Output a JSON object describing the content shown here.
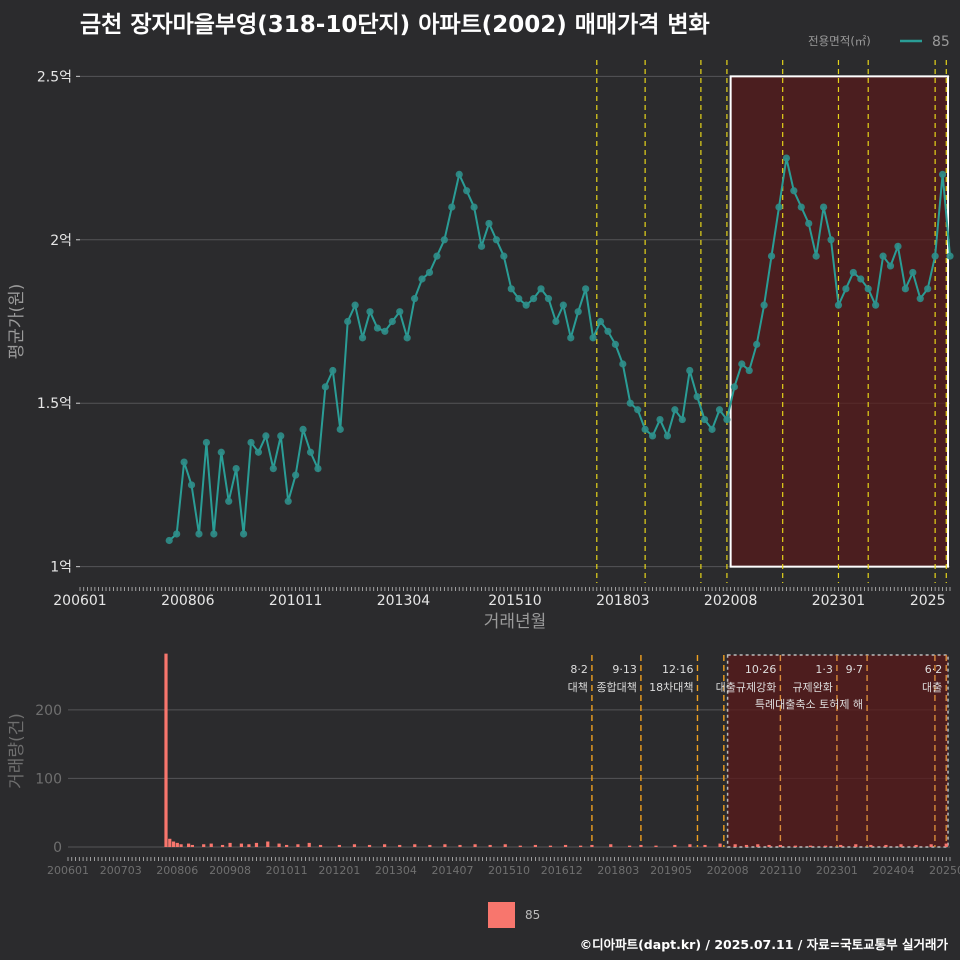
{
  "title": "금천 장자마을부영(318-10단지) 아파트(2002) 매매가격 변화",
  "footer": "©디아파트(dapt.kr) / 2025.07.11 / 자료=국토교통부 실거래가",
  "colors": {
    "background": "#2b2b2d",
    "price_line": "#2a9d96",
    "price_point": "#2f8f8b",
    "volume_bar": "#f8766d",
    "policy_line": "#e6d51a",
    "policy_line_bottom": "#f0a020",
    "highlight_fill": "#5a1a1a"
  },
  "legend_top": {
    "title": "전용면적(㎡)",
    "series": "85"
  },
  "legend_bottom": {
    "label": "85"
  },
  "chart_data": [
    {
      "type": "line",
      "xlabel": "거래년월",
      "ylabel": "평균가(원)",
      "y_unit": "억원",
      "ylim": [
        0.95,
        2.55
      ],
      "xlim": [
        "2006-01",
        "2025-07"
      ],
      "x_tick_labels": [
        "200601",
        "200806",
        "201011",
        "201304",
        "201510",
        "201803",
        "202008",
        "202301",
        "2025"
      ],
      "y_tick_labels": [
        "1억",
        "1.5억",
        "2억",
        "2.5억"
      ],
      "y_ticks": [
        1,
        1.5,
        2,
        2.5
      ],
      "grid": true,
      "legend_position": "top-right",
      "policy_dates": [
        "2017-08",
        "2018-09",
        "2019-12",
        "2020-07",
        "2021-10",
        "2023-01",
        "2023-09",
        "2025-03",
        "2025-06"
      ],
      "highlight_range": {
        "x": [
          "2020-08",
          "2025-07"
        ],
        "y": [
          1.0,
          2.5
        ]
      },
      "series": [
        {
          "name": "85",
          "x": [
            "2008-01",
            "2008-03",
            "2008-05",
            "2008-07",
            "2008-09",
            "2008-11",
            "2009-01",
            "2009-03",
            "2009-05",
            "2009-07",
            "2009-09",
            "2009-11",
            "2010-01",
            "2010-03",
            "2010-05",
            "2010-07",
            "2010-09",
            "2010-11",
            "2011-01",
            "2011-03",
            "2011-05",
            "2011-07",
            "2011-09",
            "2011-11",
            "2012-01",
            "2012-03",
            "2012-05",
            "2012-07",
            "2012-09",
            "2012-11",
            "2013-01",
            "2013-03",
            "2013-05",
            "2013-07",
            "2013-09",
            "2013-11",
            "2014-01",
            "2014-03",
            "2014-05",
            "2014-07",
            "2014-09",
            "2014-11",
            "2015-01",
            "2015-03",
            "2015-05",
            "2015-07",
            "2015-09",
            "2015-11",
            "2016-01",
            "2016-03",
            "2016-05",
            "2016-07",
            "2016-09",
            "2016-11",
            "2017-01",
            "2017-03",
            "2017-05",
            "2017-07",
            "2017-09",
            "2017-11",
            "2018-01",
            "2018-03",
            "2018-05",
            "2018-07",
            "2018-09",
            "2018-11",
            "2019-01",
            "2019-03",
            "2019-05",
            "2019-07",
            "2019-09",
            "2019-11",
            "2020-01",
            "2020-03",
            "2020-05",
            "2020-07",
            "2020-09",
            "2020-11",
            "2021-01",
            "2021-03",
            "2021-05",
            "2021-07",
            "2021-09",
            "2021-11",
            "2022-01",
            "2022-03",
            "2022-05",
            "2022-07",
            "2022-09",
            "2022-11",
            "2023-01",
            "2023-03",
            "2023-05",
            "2023-07",
            "2023-09",
            "2023-11",
            "2024-01",
            "2024-03",
            "2024-05",
            "2024-07",
            "2024-09",
            "2024-11",
            "2025-01",
            "2025-03",
            "2025-05",
            "2025-07"
          ],
          "values": [
            1.08,
            1.1,
            1.32,
            1.25,
            1.1,
            1.38,
            1.1,
            1.35,
            1.2,
            1.3,
            1.1,
            1.38,
            1.35,
            1.4,
            1.3,
            1.4,
            1.2,
            1.28,
            1.42,
            1.35,
            1.3,
            1.55,
            1.6,
            1.42,
            1.75,
            1.8,
            1.7,
            1.78,
            1.73,
            1.72,
            1.75,
            1.78,
            1.7,
            1.82,
            1.88,
            1.9,
            1.95,
            2.0,
            2.1,
            2.2,
            2.15,
            2.1,
            1.98,
            2.05,
            2.0,
            1.95,
            1.85,
            1.82,
            1.8,
            1.82,
            1.85,
            1.82,
            1.75,
            1.8,
            1.7,
            1.78,
            1.85,
            1.7,
            1.75,
            1.72,
            1.68,
            1.62,
            1.5,
            1.48,
            1.42,
            1.4,
            1.45,
            1.4,
            1.48,
            1.45,
            1.6,
            1.52,
            1.45,
            1.42,
            1.48,
            1.45,
            1.55,
            1.62,
            1.6,
            1.68,
            1.8,
            1.95,
            2.1,
            2.25,
            2.15,
            2.1,
            2.05,
            1.95,
            2.1,
            2.0,
            1.8,
            1.85,
            1.9,
            1.88,
            1.85,
            1.8,
            1.95,
            1.92,
            1.98,
            1.85,
            1.9,
            1.82,
            1.85,
            1.95,
            2.2,
            1.95
          ]
        }
      ]
    },
    {
      "type": "bar",
      "xlabel": "",
      "ylabel": "거래량(건)",
      "ylim": [
        0,
        280
      ],
      "xlim": [
        "2006-01",
        "2025-07"
      ],
      "x_tick_labels": [
        "200601",
        "200703",
        "200806",
        "200908",
        "201011",
        "201201",
        "201304",
        "201407",
        "201510",
        "201612",
        "201803",
        "201905",
        "202008",
        "202110",
        "202301",
        "202404",
        "202507"
      ],
      "y_tick_labels": [
        "0",
        "100",
        "200"
      ],
      "y_ticks": [
        0,
        100,
        200
      ],
      "grid": true,
      "highlight_range": {
        "x": [
          "2020-08",
          "2025-07"
        ]
      },
      "policy_events": [
        {
          "x": "2017-08",
          "date": "8·2",
          "text": "대책"
        },
        {
          "x": "2018-09",
          "date": "9·13",
          "text": "종합대책"
        },
        {
          "x": "2019-12",
          "date": "12·16",
          "text": "18차대책"
        },
        {
          "x": "2020-07",
          "date": "",
          "text": ""
        },
        {
          "x": "2021-10",
          "date": "10·26",
          "text": "대출규제강화"
        },
        {
          "x": "2023-01",
          "date": "1·3",
          "text": "규제완화"
        },
        {
          "x": "2023-09",
          "date": "9·7",
          "text": "특례대출축소 토허제 해"
        },
        {
          "x": "2025-03",
          "date": "",
          "text": ""
        },
        {
          "x": "2025-06",
          "date": "6·2",
          "text": "대출"
        }
      ],
      "series": [
        {
          "name": "85",
          "x": [
            "2008-03",
            "2008-04",
            "2008-05",
            "2008-06",
            "2008-07",
            "2008-09",
            "2008-10",
            "2009-01",
            "2009-03",
            "2009-06",
            "2009-08",
            "2009-11",
            "2010-01",
            "2010-03",
            "2010-06",
            "2010-09",
            "2010-11",
            "2011-02",
            "2011-05",
            "2011-08",
            "2012-01",
            "2012-05",
            "2012-09",
            "2013-01",
            "2013-05",
            "2013-09",
            "2014-01",
            "2014-05",
            "2014-09",
            "2015-01",
            "2015-05",
            "2015-09",
            "2016-01",
            "2016-05",
            "2016-09",
            "2017-01",
            "2017-05",
            "2017-08",
            "2018-01",
            "2018-06",
            "2018-09",
            "2019-01",
            "2019-06",
            "2019-10",
            "2020-02",
            "2020-06",
            "2020-10",
            "2021-01",
            "2021-04",
            "2021-07",
            "2021-10",
            "2022-02",
            "2022-06",
            "2022-10",
            "2023-02",
            "2023-06",
            "2023-10",
            "2024-02",
            "2024-06",
            "2024-10",
            "2025-02",
            "2025-06"
          ],
          "values": [
            282,
            12,
            8,
            6,
            4,
            5,
            3,
            4,
            5,
            3,
            6,
            5,
            4,
            6,
            8,
            5,
            3,
            4,
            6,
            3,
            3,
            4,
            3,
            4,
            3,
            4,
            3,
            4,
            3,
            4,
            3,
            4,
            2,
            3,
            2,
            3,
            2,
            3,
            4,
            2,
            3,
            2,
            3,
            4,
            3,
            5,
            4,
            3,
            4,
            3,
            3,
            2,
            2,
            2,
            3,
            4,
            3,
            3,
            4,
            3,
            4,
            5
          ]
        }
      ]
    }
  ]
}
